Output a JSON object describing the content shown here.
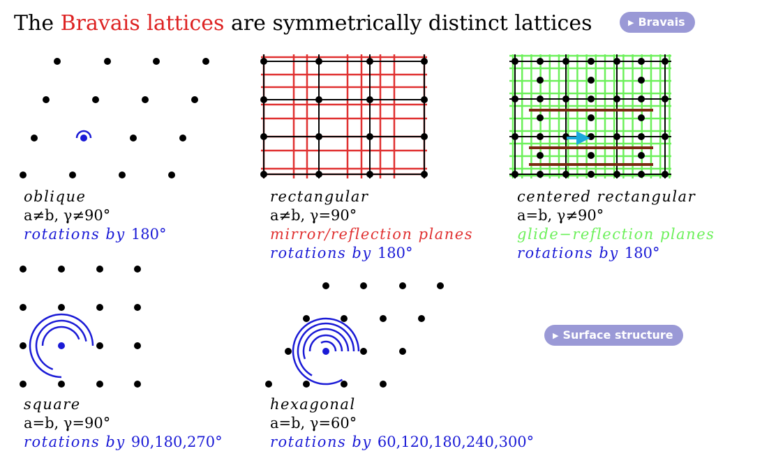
{
  "title": {
    "prefix": "The ",
    "highlight": "Bravais lattices",
    "suffix": " are symmetrically distinct lattices"
  },
  "buttons": {
    "bravais": "Bravais",
    "surface": "Surface structure",
    "icon": "play-triangle-icon"
  },
  "colors": {
    "dot": "#000000",
    "rotation": "#1a1ad6",
    "mirror": "#e03030",
    "glide": "#6cf05a",
    "glide_line": "#7a2a10",
    "arrow": "#1ba8dc",
    "button": "#9a99d6"
  },
  "lattices": {
    "oblique": {
      "name": "oblique",
      "params": "a≠b,  γ≠90°",
      "rot_prefix": "rotations  by  ",
      "rot_value": "180°",
      "rotation_arcs": 1
    },
    "rectangular": {
      "name": "rectangular",
      "params": "a≠b,  γ=90°",
      "mirror": "mirror/reflection  planes",
      "rot_prefix": "rotations  by  ",
      "rot_value": "180°"
    },
    "centered": {
      "name": "centered  rectangular",
      "params": "a=b,  γ≠90°",
      "glide": "glide−reflection  planes",
      "rot_prefix": "rotations  by  ",
      "rot_value": "180°"
    },
    "square": {
      "name": "square",
      "params": "a=b,  γ=90°",
      "rot_prefix": "rotations  by  ",
      "rot_value": "90,180,270°",
      "rotation_arcs": 3
    },
    "hexagonal": {
      "name": "hexagonal",
      "params": "a=b,  γ=60°",
      "rot_prefix": "rotations  by  ",
      "rot_value": "60,120,180,240,300°",
      "rotation_arcs": 5
    }
  }
}
